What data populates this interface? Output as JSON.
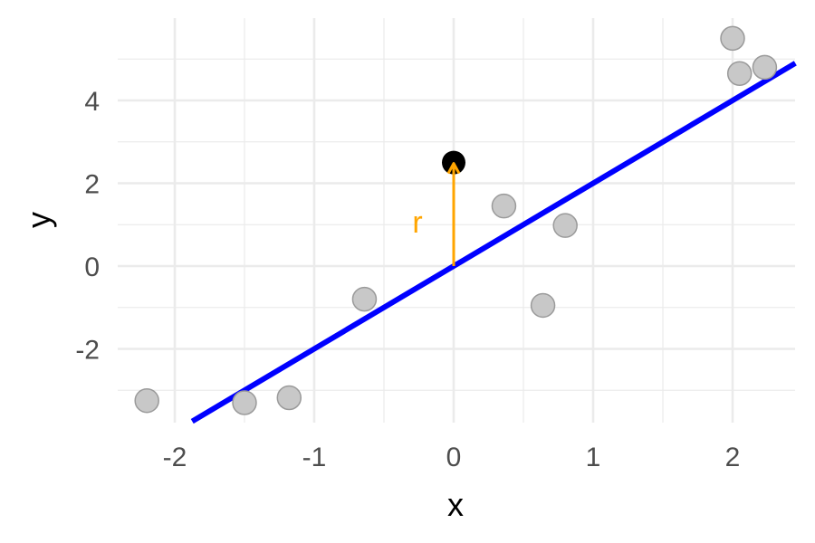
{
  "chart_data": {
    "type": "scatter",
    "xlabel": "x",
    "ylabel": "y",
    "xlim": [
      -2.4,
      2.45
    ],
    "ylim": [
      -3.75,
      5.75
    ],
    "x_ticks": [
      -2,
      -1,
      0,
      1,
      2
    ],
    "y_ticks": [
      -2,
      0,
      2,
      4
    ],
    "x_tick_labels": [
      "-2",
      "-1",
      "0",
      "1",
      "2"
    ],
    "y_tick_labels": [
      "-2",
      "0",
      "2",
      "4"
    ],
    "grid": true,
    "points": [
      {
        "x": -2.2,
        "y": -3.25
      },
      {
        "x": -1.5,
        "y": -3.3
      },
      {
        "x": -1.18,
        "y": -3.18
      },
      {
        "x": -0.64,
        "y": -0.8
      },
      {
        "x": 0.36,
        "y": 1.45
      },
      {
        "x": 0.64,
        "y": -0.95
      },
      {
        "x": 0.8,
        "y": 0.98
      },
      {
        "x": 2.0,
        "y": 5.5
      },
      {
        "x": 2.05,
        "y": 4.65
      },
      {
        "x": 2.23,
        "y": 4.8
      }
    ],
    "highlight_point": {
      "x": 0.0,
      "y": 2.5
    },
    "regression_line": {
      "slope": 2.0,
      "intercept": 0.0
    },
    "residual": {
      "x": 0.0,
      "y_from": 0.0,
      "y_to": 2.5,
      "label": "r"
    },
    "colors": {
      "points": "#c8c8c8",
      "highlight": "#000000",
      "line": "#0000ff",
      "residual": "#ffa500",
      "grid": "#ebebeb"
    }
  }
}
